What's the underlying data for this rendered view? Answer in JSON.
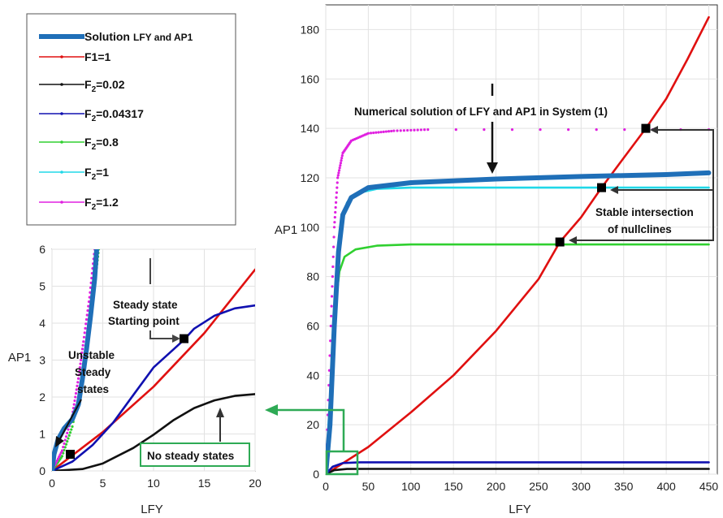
{
  "chart_data": [
    {
      "panel": "main",
      "type": "line",
      "xlabel": "LFY",
      "ylabel": "AP1",
      "xlim": [
        0,
        460
      ],
      "ylim": [
        0,
        190
      ],
      "xticks": [
        "0",
        "50",
        "100",
        "150",
        "200",
        "250",
        "300",
        "350",
        "400",
        "450"
      ],
      "yticks": [
        "0",
        "20",
        "40",
        "60",
        "80",
        "100",
        "120",
        "140",
        "160",
        "180"
      ],
      "grid": true,
      "series": [
        {
          "name": "F1=1",
          "color": "#e01010",
          "kind": "curve",
          "points": [
            [
              0,
              0
            ],
            [
              50,
              11
            ],
            [
              100,
              25
            ],
            [
              150,
              40
            ],
            [
              200,
              58
            ],
            [
              250,
              79
            ],
            [
              275,
              94
            ],
            [
              300,
              104
            ],
            [
              324,
              116
            ],
            [
              350,
              128
            ],
            [
              376,
              140
            ],
            [
              400,
              152
            ],
            [
              425,
              168
            ],
            [
              450,
              185
            ]
          ]
        },
        {
          "name": "F2=0.02",
          "color": "#111111",
          "kind": "curve",
          "points": [
            [
              0,
              0
            ],
            [
              10,
              1.6
            ],
            [
              25,
              2.1
            ],
            [
              50,
              2.15
            ],
            [
              100,
              2.15
            ],
            [
              450,
              2.15
            ]
          ]
        },
        {
          "name": "F2=0.04317",
          "color": "#1010b0",
          "kind": "curve",
          "points": [
            [
              0,
              0
            ],
            [
              8,
              3
            ],
            [
              20,
              4.5
            ],
            [
              40,
              4.8
            ],
            [
              100,
              4.8
            ],
            [
              450,
              4.8
            ]
          ]
        },
        {
          "name": "F2=0.8",
          "color": "#30d030",
          "kind": "curve",
          "points": [
            [
              0,
              0
            ],
            [
              8,
              40
            ],
            [
              12,
              70
            ],
            [
              16,
              82
            ],
            [
              22,
              88
            ],
            [
              35,
              91
            ],
            [
              60,
              92.5
            ],
            [
              100,
              93
            ],
            [
              450,
              93
            ]
          ]
        },
        {
          "name": "F2=1",
          "color": "#20d8e8",
          "kind": "curve",
          "points": [
            [
              0,
              0
            ],
            [
              8,
              50
            ],
            [
              13,
              85
            ],
            [
              18,
              102
            ],
            [
              25,
              110
            ],
            [
              40,
              114
            ],
            [
              60,
              115.5
            ],
            [
              100,
              116
            ],
            [
              450,
              116
            ]
          ]
        },
        {
          "name": "F2=1.2",
          "color": "#e020e0",
          "kind": "dots",
          "points": [
            [
              0,
              0
            ],
            [
              6,
              60
            ],
            [
              10,
              100
            ],
            [
              14,
              120
            ],
            [
              20,
              130
            ],
            [
              30,
              135
            ],
            [
              50,
              138
            ],
            [
              80,
              139
            ],
            [
              120,
              139.5
            ],
            [
              450,
              139.5
            ]
          ]
        },
        {
          "name": "Solution LFY and AP1",
          "color": "#1f6fb8",
          "kind": "thick",
          "points": [
            [
              0,
              0
            ],
            [
              5,
              20
            ],
            [
              10,
              60
            ],
            [
              15,
              90
            ],
            [
              20,
              105
            ],
            [
              30,
              112
            ],
            [
              50,
              116
            ],
            [
              100,
              118
            ],
            [
              200,
              119.5
            ],
            [
              300,
              120.5
            ],
            [
              400,
              121.3
            ],
            [
              450,
              122
            ]
          ]
        }
      ],
      "markers": [
        [
          376,
          140
        ],
        [
          324,
          116
        ],
        [
          275,
          94
        ]
      ],
      "annotations": {
        "top": "Numerical solution of LFY and AP1 in System (1)",
        "right_line1": "Stable intersection",
        "right_line2": "of nullclines"
      }
    },
    {
      "panel": "inset",
      "type": "line",
      "xlabel": "LFY",
      "ylabel": "AP1",
      "xlim": [
        0,
        20
      ],
      "ylim": [
        0,
        6
      ],
      "xticks": [
        "0",
        "5",
        "10",
        "15",
        "20"
      ],
      "yticks": [
        "0",
        "1",
        "2",
        "3",
        "4",
        "5",
        "6"
      ],
      "grid": true,
      "series": [
        {
          "name": "F1=1",
          "color": "#e01010",
          "kind": "curve",
          "points": [
            [
              0,
              0
            ],
            [
              5,
              1.05
            ],
            [
              10,
              2.28
            ],
            [
              15,
              3.73
            ],
            [
              20,
              5.45
            ]
          ]
        },
        {
          "name": "F2=0.02",
          "color": "#111111",
          "kind": "curve",
          "points": [
            [
              0,
              0
            ],
            [
              3,
              0.05
            ],
            [
              5,
              0.2
            ],
            [
              8,
              0.62
            ],
            [
              10,
              0.98
            ],
            [
              12,
              1.38
            ],
            [
              14,
              1.7
            ],
            [
              16,
              1.91
            ],
            [
              18,
              2.03
            ],
            [
              20,
              2.08
            ]
          ]
        },
        {
          "name": "F2=0.04317",
          "color": "#1010b0",
          "kind": "curve",
          "points": [
            [
              0,
              0
            ],
            [
              2,
              0.25
            ],
            [
              4,
              0.7
            ],
            [
              6,
              1.3
            ],
            [
              8,
              2.05
            ],
            [
              10,
              2.8
            ],
            [
              12,
              3.3
            ],
            [
              13,
              3.55
            ],
            [
              14,
              3.85
            ],
            [
              16,
              4.2
            ],
            [
              18,
              4.4
            ],
            [
              20,
              4.48
            ]
          ]
        },
        {
          "name": "F2=0.8",
          "color": "#30d030",
          "kind": "dots",
          "points": [
            [
              0,
              0
            ],
            [
              1,
              0.4
            ],
            [
              2,
              1.2
            ],
            [
              3,
              2.5
            ],
            [
              3.6,
              3.6
            ],
            [
              4.2,
              5.0
            ],
            [
              4.6,
              6
            ]
          ]
        },
        {
          "name": "F2=1.2",
          "color": "#e020e0",
          "kind": "dots",
          "points": [
            [
              0,
              0
            ],
            [
              1,
              0.55
            ],
            [
              2,
              1.5
            ],
            [
              2.6,
              2.5
            ],
            [
              3.1,
              3.5
            ],
            [
              3.7,
              4.7
            ],
            [
              4.2,
              6
            ]
          ]
        },
        {
          "name": "Solution LFY and AP1",
          "color": "#1f6fb8",
          "kind": "thick",
          "points": [
            [
              0,
              0
            ],
            [
              0.2,
              0.45
            ],
            [
              0.6,
              0.85
            ],
            [
              1.2,
              1.15
            ],
            [
              2,
              1.4
            ],
            [
              2.6,
              1.8
            ],
            [
              3,
              2.5
            ],
            [
              3.4,
              3.3
            ],
            [
              3.8,
              4.2
            ],
            [
              4.2,
              5.2
            ],
            [
              4.4,
              6
            ]
          ]
        }
      ],
      "markers": [
        [
          1.8,
          0.45
        ],
        [
          13,
          3.58
        ]
      ],
      "annotations": {
        "steady_line1": "Steady state",
        "steady_line2": "Starting point",
        "unstable_line1": "Unstable",
        "unstable_line2": "Steady",
        "unstable_line3": "states",
        "no_steady": "No steady states"
      }
    }
  ],
  "legend": [
    {
      "label": "Solution",
      "suffix": "LFY and AP1",
      "color": "#1f6fb8",
      "thick": true
    },
    {
      "label": "F1=1",
      "color": "#e01010"
    },
    {
      "label": "F",
      "sub": "2",
      "rest": "=0.02",
      "color": "#111111"
    },
    {
      "label": "F",
      "sub": "2",
      "rest": "=0.04317",
      "color": "#1010b0"
    },
    {
      "label": "F",
      "sub": "2",
      "rest": "=0.8",
      "color": "#30d030"
    },
    {
      "label": "F",
      "sub": "2",
      "rest": "=1",
      "color": "#20d8e8"
    },
    {
      "label": "F",
      "sub": "2",
      "rest": "=1.2",
      "color": "#e020e0"
    }
  ]
}
